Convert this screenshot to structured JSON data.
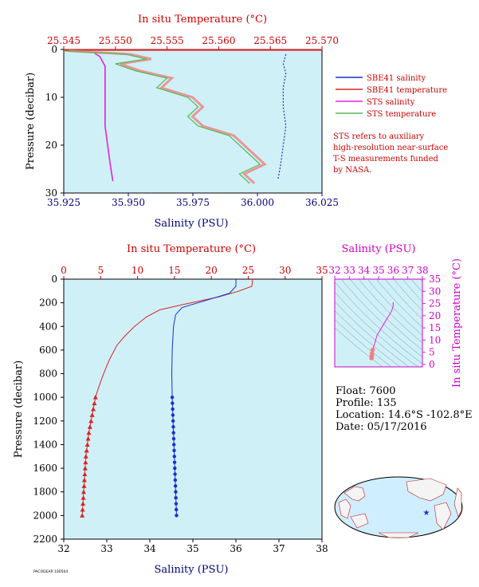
{
  "colors": {
    "plot_bg": "#d0f0f8",
    "red": "#dd2222",
    "blue": "#1a2fd0",
    "magenta": "#dd22dd",
    "green": "#55bb55",
    "salmon": "#f08080",
    "dark_blue": "#000080",
    "title_red": "#cc0000"
  },
  "chart_data": [
    {
      "id": "surface",
      "type": "line",
      "top_axis": {
        "label": "In situ Temperature (°C)",
        "min": 25.545,
        "max": 25.57,
        "ticks": [
          "25.545",
          "25.550",
          "25.555",
          "25.560",
          "25.565",
          "25.570"
        ]
      },
      "bottom_axis": {
        "label": "Salinity (PSU)",
        "min": 35.925,
        "max": 36.025,
        "ticks": [
          "35.925",
          "35.950",
          "35.975",
          "36.000",
          "36.025"
        ]
      },
      "y_axis": {
        "label": "Pressure (decibar)",
        "min": 0,
        "max": 30,
        "inverted": true,
        "ticks": [
          "0",
          "10",
          "20",
          "30"
        ]
      },
      "legend": [
        {
          "name": "SBE41 salinity",
          "color": "#1a2fd0"
        },
        {
          "name": "SBE41 temperature",
          "color": "#dd2222"
        },
        {
          "name": "STS salinity",
          "color": "#dd22dd"
        },
        {
          "name": "STS temperature",
          "color": "#55bb55"
        }
      ],
      "note": [
        "STS refers to auxiliary",
        "high-resolution near-surface",
        "T-S measurements funded",
        "by NASA."
      ],
      "series": [
        {
          "name": "SBE41 salinity",
          "axis": "bottom",
          "points": [
            [
              36.011,
              1
            ],
            [
              36.01,
              3
            ],
            [
              36.011,
              5
            ],
            [
              36.01,
              8
            ],
            [
              36.01,
              12
            ],
            [
              36.011,
              16
            ],
            [
              36.01,
              20
            ],
            [
              36.009,
              24
            ],
            [
              36.008,
              27
            ]
          ]
        },
        {
          "name": "SBE41 temperature",
          "axis": "top",
          "points": [
            [
              25.57,
              0.1
            ]
          ]
        },
        {
          "name": "STS salinity",
          "axis": "bottom",
          "points": [
            [
              35.937,
              0.8
            ],
            [
              35.939,
              1.5
            ],
            [
              35.94,
              2.5
            ],
            [
              35.941,
              3.5
            ],
            [
              35.941,
              5
            ],
            [
              35.941,
              8
            ],
            [
              35.941,
              12
            ],
            [
              35.941,
              16
            ],
            [
              35.942,
              20
            ],
            [
              35.943,
              24
            ],
            [
              35.944,
              27.5
            ]
          ]
        },
        {
          "name": "STS temperature",
          "axis": "top",
          "points": [
            [
              25.545,
              0.3
            ],
            [
              25.551,
              1
            ],
            [
              25.553,
              2
            ],
            [
              25.55,
              3
            ],
            [
              25.552,
              4.5
            ],
            [
              25.555,
              6
            ],
            [
              25.554,
              8
            ],
            [
              25.557,
              10
            ],
            [
              25.558,
              12
            ],
            [
              25.557,
              14
            ],
            [
              25.558,
              16
            ],
            [
              25.561,
              18
            ],
            [
              25.562,
              20
            ],
            [
              25.563,
              22
            ],
            [
              25.564,
              24
            ],
            [
              25.562,
              26
            ],
            [
              25.563,
              28
            ]
          ]
        }
      ]
    },
    {
      "id": "profile",
      "type": "line",
      "top_axis": {
        "label": "In situ Temperature (°C)",
        "min": 0,
        "max": 35,
        "ticks": [
          "0",
          "5",
          "10",
          "15",
          "20",
          "25",
          "30",
          "35"
        ]
      },
      "bottom_axis": {
        "label": "Salinity (PSU)",
        "min": 32,
        "max": 38,
        "ticks": [
          "32",
          "33",
          "34",
          "35",
          "36",
          "37",
          "38"
        ]
      },
      "y_axis": {
        "label": "Pressure (decibar)",
        "min": 0,
        "max": 2200,
        "inverted": true,
        "ticks": [
          "0",
          "200",
          "400",
          "600",
          "800",
          "1000",
          "1200",
          "1400",
          "1600",
          "1800",
          "2000",
          "2200"
        ]
      },
      "series": [
        {
          "name": "Temperature",
          "axis": "top",
          "points": [
            [
              25.6,
              0
            ],
            [
              25.5,
              60
            ],
            [
              23.8,
              100
            ],
            [
              21.0,
              150
            ],
            [
              16.5,
              210
            ],
            [
              13.0,
              260
            ],
            [
              11.2,
              320
            ],
            [
              9.6,
              400
            ],
            [
              8.3,
              480
            ],
            [
              7.2,
              560
            ],
            [
              6.2,
              680
            ],
            [
              5.4,
              800
            ],
            [
              4.7,
              920
            ],
            [
              4.3,
              1000
            ],
            [
              4.0,
              1100
            ],
            [
              3.7,
              1200
            ],
            [
              3.4,
              1300
            ],
            [
              3.2,
              1400
            ],
            [
              3.0,
              1500
            ],
            [
              2.9,
              1600
            ],
            [
              2.8,
              1700
            ],
            [
              2.7,
              1800
            ],
            [
              2.6,
              1900
            ],
            [
              2.5,
              2000
            ]
          ]
        },
        {
          "name": "Salinity",
          "axis": "bottom",
          "points": [
            [
              36.0,
              0
            ],
            [
              36.0,
              60
            ],
            [
              35.85,
              120
            ],
            [
              35.3,
              180
            ],
            [
              34.75,
              240
            ],
            [
              34.6,
              300
            ],
            [
              34.55,
              400
            ],
            [
              34.52,
              600
            ],
            [
              34.51,
              800
            ],
            [
              34.52,
              1000
            ],
            [
              34.54,
              1200
            ],
            [
              34.56,
              1400
            ],
            [
              34.58,
              1600
            ],
            [
              34.6,
              1800
            ],
            [
              34.62,
              2000
            ]
          ]
        }
      ],
      "marker_start_pressure": 1000,
      "marker_step": 50
    },
    {
      "id": "ts-diagram",
      "type": "scatter",
      "x_axis": {
        "label": "Salinity (PSU)",
        "min": 32,
        "max": 38,
        "ticks": [
          "32",
          "33",
          "34",
          "35",
          "36",
          "37",
          "38"
        ]
      },
      "y_axis": {
        "label": "In situ Temperature (°C)",
        "min": -1,
        "max": 35,
        "ticks": [
          "0",
          "5",
          "10",
          "15",
          "20",
          "25",
          "30",
          "35"
        ]
      },
      "points": [
        [
          34.52,
          2.6
        ],
        [
          34.54,
          3.5
        ],
        [
          34.55,
          4.5
        ],
        [
          34.6,
          6.0
        ],
        [
          34.7,
          8.0
        ],
        [
          34.8,
          10.0
        ],
        [
          34.9,
          12.0
        ],
        [
          35.1,
          14.0
        ],
        [
          35.3,
          16.0
        ],
        [
          35.5,
          18.0
        ],
        [
          35.7,
          20.0
        ],
        [
          35.9,
          22.0
        ],
        [
          36.0,
          24.0
        ],
        [
          36.0,
          25.5
        ]
      ]
    }
  ],
  "float_info": {
    "float": "Float:  7600",
    "profile": "Profile:  135",
    "location": "Location:  14.6°S  -102.8°E",
    "date": "Date:  05/17/2016"
  },
  "map": {
    "marker_color": "#1a2fd0"
  },
  "footer_text": "PACODEAR 100504"
}
